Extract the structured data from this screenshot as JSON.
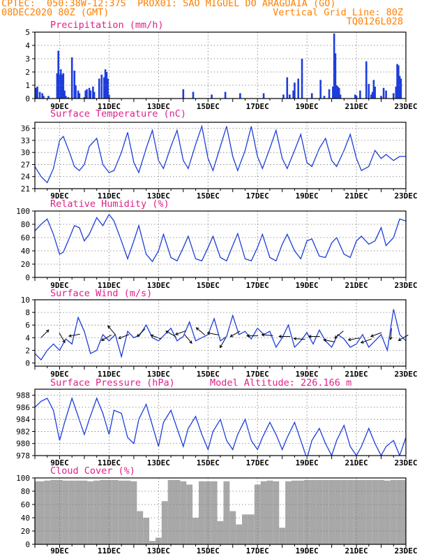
{
  "header": {
    "line1": "CPTEC:  050:38W-12:37S  PROX01: SAO MIGUEL DO ARAGUAIA (GO)",
    "line2_left": "08DEC2020 80Z (GMT)",
    "line2_right": "Vertical Grid Line: 80Z",
    "line3_right": "TQ0126L028",
    "model_altitude": "Model Altitude: 226.166 m"
  },
  "colors": {
    "header": "#ff7f00",
    "title": "#e0208a",
    "line": "#1c3ddc",
    "bar": "#1c3ddc",
    "cloud": "#a8a8a8"
  },
  "x_ticks": [
    "9DEC",
    "11DEC",
    "13DEC",
    "15DEC",
    "17DEC",
    "19DEC",
    "21DEC",
    "23DEC"
  ],
  "x_tick_pos": [
    1,
    3,
    5,
    7,
    9,
    11,
    13,
    15
  ],
  "x_range": [
    0.0,
    15.0
  ],
  "chart_data": [
    {
      "type": "bar",
      "title": "Precipitation (mm/h)",
      "ylim": [
        0,
        5
      ],
      "yticks": [
        0,
        1,
        2,
        3,
        4,
        5
      ],
      "grid": true,
      "x": [
        0.05,
        0.1,
        0.2,
        0.3,
        0.35,
        0.55,
        0.9,
        0.95,
        1.0,
        1.05,
        1.1,
        1.15,
        1.2,
        1.25,
        1.35,
        1.5,
        1.6,
        1.65,
        1.75,
        1.8,
        2.0,
        2.05,
        2.1,
        2.2,
        2.25,
        2.35,
        2.4,
        2.6,
        2.7,
        2.8,
        2.85,
        2.9,
        2.95,
        3.0,
        6.0,
        6.4,
        7.15,
        7.7,
        8.3,
        9.25,
        10.05,
        10.2,
        10.3,
        10.45,
        10.5,
        10.65,
        10.8,
        11.2,
        11.55,
        11.7,
        11.9,
        12.05,
        12.1,
        12.15,
        12.2,
        12.25,
        12.3,
        12.35,
        12.95,
        13.0,
        13.15,
        13.4,
        13.5,
        13.6,
        13.65,
        13.7,
        13.75,
        14.0,
        14.1,
        14.2,
        14.5,
        14.6,
        14.65,
        14.7,
        14.75,
        14.8
      ],
      "values": [
        0.8,
        0.9,
        0.5,
        0.4,
        0.2,
        0.2,
        1.9,
        3.6,
        1.8,
        2.2,
        1.8,
        1.9,
        0.6,
        0.2,
        0.1,
        3.1,
        2.1,
        1.0,
        0.6,
        0.4,
        0.1,
        0.6,
        0.7,
        0.8,
        0.6,
        0.9,
        0.5,
        1.5,
        1.8,
        1.6,
        2.2,
        2.0,
        1.5,
        0.3,
        0.7,
        0.5,
        0.3,
        0.5,
        0.4,
        0.4,
        0.3,
        1.6,
        0.3,
        0.6,
        1.2,
        1.5,
        3.0,
        0.4,
        1.4,
        0.2,
        0.7,
        0.9,
        4.9,
        3.4,
        1.0,
        0.9,
        0.8,
        0.3,
        0.3,
        0.2,
        0.6,
        2.8,
        1.1,
        0.3,
        0.5,
        1.4,
        0.9,
        0.2,
        0.8,
        0.6,
        0.4,
        0.9,
        2.6,
        2.5,
        1.7,
        1.5
      ]
    },
    {
      "type": "line",
      "title": "Surface Temperature (nC)",
      "ylim": [
        21,
        37.5
      ],
      "yticks": [
        21,
        24,
        27,
        30,
        33,
        36
      ],
      "grid": true,
      "x": [
        0.0,
        0.25,
        0.5,
        0.75,
        1.0,
        1.15,
        1.4,
        1.6,
        1.8,
        2.0,
        2.2,
        2.5,
        2.75,
        3.0,
        3.2,
        3.5,
        3.75,
        4.0,
        4.2,
        4.5,
        4.75,
        5.0,
        5.2,
        5.5,
        5.75,
        6.0,
        6.2,
        6.5,
        6.75,
        7.0,
        7.2,
        7.5,
        7.75,
        8.0,
        8.2,
        8.5,
        8.75,
        9.0,
        9.2,
        9.5,
        9.75,
        10.0,
        10.2,
        10.5,
        10.75,
        11.0,
        11.2,
        11.5,
        11.75,
        12.0,
        12.2,
        12.5,
        12.75,
        13.0,
        13.2,
        13.5,
        13.75,
        14.0,
        14.2,
        14.5,
        14.75,
        15.0
      ],
      "series": [
        {
          "values": [
            26.5,
            24.0,
            22.5,
            26.0,
            33.0,
            34.0,
            30.0,
            26.5,
            25.5,
            27.0,
            31.5,
            33.5,
            27.0,
            25.0,
            25.5,
            30.0,
            35.0,
            27.5,
            25.0,
            31.0,
            35.5,
            28.0,
            26.0,
            31.5,
            35.5,
            28.0,
            26.0,
            32.0,
            36.5,
            28.5,
            25.5,
            31.5,
            36.5,
            29.0,
            25.5,
            30.5,
            36.5,
            29.0,
            26.0,
            31.0,
            35.5,
            28.5,
            26.0,
            30.5,
            34.5,
            27.5,
            26.5,
            31.0,
            33.5,
            28.0,
            26.5,
            30.5,
            34.5,
            28.5,
            25.5,
            26.5,
            30.5,
            28.5,
            29.5,
            28.0,
            29.0,
            29.0
          ]
        }
      ]
    },
    {
      "type": "line",
      "title": "Relative Humidity (%)",
      "ylim": [
        0,
        100
      ],
      "yticks": [
        0,
        20,
        40,
        60,
        80,
        100
      ],
      "grid": true,
      "x": [
        0.0,
        0.25,
        0.5,
        0.75,
        1.0,
        1.15,
        1.4,
        1.6,
        1.8,
        2.0,
        2.2,
        2.5,
        2.75,
        3.0,
        3.2,
        3.5,
        3.75,
        4.0,
        4.2,
        4.5,
        4.75,
        5.0,
        5.2,
        5.5,
        5.75,
        6.0,
        6.2,
        6.5,
        6.75,
        7.0,
        7.2,
        7.5,
        7.75,
        8.0,
        8.2,
        8.5,
        8.75,
        9.0,
        9.2,
        9.5,
        9.75,
        10.0,
        10.2,
        10.5,
        10.75,
        11.0,
        11.2,
        11.5,
        11.75,
        12.0,
        12.2,
        12.5,
        12.75,
        13.0,
        13.2,
        13.5,
        13.75,
        14.0,
        14.2,
        14.5,
        14.75,
        15.0
      ],
      "series": [
        {
          "values": [
            70,
            80,
            88,
            65,
            35,
            38,
            60,
            78,
            75,
            55,
            65,
            90,
            78,
            95,
            85,
            55,
            28,
            55,
            78,
            35,
            24,
            40,
            65,
            30,
            25,
            45,
            62,
            28,
            25,
            45,
            62,
            30,
            25,
            48,
            66,
            28,
            25,
            45,
            65,
            30,
            25,
            50,
            65,
            40,
            28,
            55,
            58,
            32,
            30,
            52,
            60,
            35,
            30,
            55,
            62,
            50,
            55,
            75,
            48,
            60,
            88,
            85
          ]
        }
      ]
    },
    {
      "type": "line",
      "title": "Surface Wind (m/s)",
      "ylim": [
        -0.5,
        10
      ],
      "yticks": [
        0,
        2,
        4,
        6,
        8,
        10
      ],
      "grid": true,
      "x": [
        0.0,
        0.25,
        0.5,
        0.75,
        1.0,
        1.25,
        1.5,
        1.75,
        2.0,
        2.25,
        2.5,
        2.75,
        3.0,
        3.25,
        3.5,
        3.75,
        4.0,
        4.25,
        4.5,
        4.75,
        5.0,
        5.25,
        5.5,
        5.75,
        6.0,
        6.25,
        6.5,
        6.75,
        7.0,
        7.25,
        7.5,
        7.75,
        8.0,
        8.25,
        8.5,
        8.75,
        9.0,
        9.25,
        9.5,
        9.75,
        10.0,
        10.25,
        10.5,
        10.75,
        11.0,
        11.25,
        11.5,
        11.75,
        12.0,
        12.25,
        12.5,
        12.75,
        13.0,
        13.25,
        13.5,
        13.75,
        14.0,
        14.25,
        14.5,
        14.75,
        15.0
      ],
      "series": [
        {
          "values": [
            1.5,
            0.5,
            2.0,
            3.0,
            2.0,
            3.8,
            3.0,
            7.2,
            5.0,
            1.5,
            2.0,
            4.5,
            3.5,
            4.5,
            1.0,
            5.0,
            4.0,
            4.5,
            6.0,
            4.0,
            3.5,
            4.5,
            5.5,
            3.5,
            4.2,
            6.5,
            3.5,
            4.0,
            4.5,
            7.0,
            3.5,
            4.2,
            7.5,
            4.5,
            5.0,
            3.8,
            5.5,
            4.5,
            5.0,
            2.5,
            4.0,
            6.0,
            2.5,
            3.5,
            4.8,
            3.0,
            5.2,
            3.5,
            2.5,
            4.5,
            3.8,
            2.5,
            3.0,
            4.5,
            2.5,
            3.5,
            4.5,
            2.0,
            8.5,
            4.5,
            3.5
          ]
        }
      ],
      "arrows": [
        {
          "x": 0.4,
          "y": 4.6,
          "dir": 45
        },
        {
          "x": 1.1,
          "y": 4.0,
          "dir": 300
        },
        {
          "x": 1.6,
          "y": 4.4,
          "dir": 190
        },
        {
          "x": 2.9,
          "y": 4.0,
          "dir": 210
        },
        {
          "x": 3.1,
          "y": 5.2,
          "dir": 130
        },
        {
          "x": 3.6,
          "y": 4.2,
          "dir": 200
        },
        {
          "x": 4.3,
          "y": 4.8,
          "dir": 225
        },
        {
          "x": 4.9,
          "y": 4.1,
          "dir": 160
        },
        {
          "x": 5.5,
          "y": 4.6,
          "dir": 150
        },
        {
          "x": 5.9,
          "y": 4.8,
          "dir": 200
        },
        {
          "x": 6.2,
          "y": 3.8,
          "dir": 310
        },
        {
          "x": 6.7,
          "y": 5.0,
          "dir": 140
        },
        {
          "x": 7.2,
          "y": 4.6,
          "dir": 170
        },
        {
          "x": 7.6,
          "y": 3.2,
          "dir": 240
        },
        {
          "x": 8.1,
          "y": 4.6,
          "dir": 210
        },
        {
          "x": 8.8,
          "y": 4.3,
          "dir": 180
        },
        {
          "x": 9.4,
          "y": 4.4,
          "dir": 175
        },
        {
          "x": 10.1,
          "y": 4.2,
          "dir": 180
        },
        {
          "x": 10.7,
          "y": 3.8,
          "dir": 175
        },
        {
          "x": 11.3,
          "y": 4.2,
          "dir": 180
        },
        {
          "x": 11.9,
          "y": 3.5,
          "dir": 170
        },
        {
          "x": 12.3,
          "y": 4.5,
          "dir": 220
        },
        {
          "x": 12.9,
          "y": 3.8,
          "dir": 190
        },
        {
          "x": 13.4,
          "y": 3.5,
          "dir": 200
        },
        {
          "x": 13.8,
          "y": 4.5,
          "dir": 200
        },
        {
          "x": 14.4,
          "y": 4.6,
          "dir": 265
        },
        {
          "x": 14.9,
          "y": 4.0,
          "dir": 210
        }
      ]
    },
    {
      "type": "line",
      "title": "Surface Pressure (hPa)",
      "ylim": [
        978,
        989
      ],
      "yticks": [
        978,
        980,
        982,
        984,
        986,
        988
      ],
      "grid": true,
      "x": [
        0.0,
        0.25,
        0.5,
        0.75,
        1.0,
        1.2,
        1.5,
        1.75,
        2.0,
        2.2,
        2.5,
        2.75,
        3.0,
        3.2,
        3.5,
        3.75,
        4.0,
        4.2,
        4.5,
        4.75,
        5.0,
        5.2,
        5.5,
        5.75,
        6.0,
        6.2,
        6.5,
        6.75,
        7.0,
        7.2,
        7.5,
        7.75,
        8.0,
        8.2,
        8.5,
        8.75,
        9.0,
        9.2,
        9.5,
        9.75,
        10.0,
        10.2,
        10.5,
        10.75,
        11.0,
        11.2,
        11.5,
        11.75,
        12.0,
        12.2,
        12.5,
        12.75,
        13.0,
        13.2,
        13.5,
        13.75,
        14.0,
        14.2,
        14.5,
        14.75,
        15.0
      ],
      "series": [
        {
          "values": [
            986.0,
            987.0,
            987.5,
            985.5,
            980.5,
            983.5,
            987.5,
            984.5,
            981.5,
            984.0,
            987.5,
            985.0,
            981.5,
            985.5,
            985.0,
            981.0,
            980.0,
            984.0,
            986.5,
            983.0,
            979.5,
            983.5,
            985.5,
            982.5,
            979.5,
            982.5,
            984.5,
            981.5,
            979.0,
            982.0,
            984.0,
            980.5,
            979.0,
            981.5,
            984.0,
            980.5,
            979.0,
            981.0,
            983.5,
            981.5,
            979.0,
            981.0,
            983.5,
            980.5,
            977.5,
            980.5,
            982.5,
            980.0,
            978.0,
            980.5,
            983.0,
            979.5,
            978.0,
            979.5,
            982.5,
            980.0,
            978.0,
            979.5,
            980.5,
            978.0,
            981.0
          ]
        }
      ]
    },
    {
      "type": "bar",
      "title": "Cloud Cover (%)",
      "ylim": [
        0,
        100
      ],
      "yticks": [
        0,
        20,
        40,
        60,
        80,
        100
      ],
      "grid": true,
      "x": [
        0.0,
        0.25,
        0.5,
        0.75,
        1.0,
        1.25,
        1.5,
        1.75,
        2.0,
        2.25,
        2.5,
        2.75,
        3.0,
        3.25,
        3.5,
        3.75,
        4.0,
        4.25,
        4.5,
        4.75,
        5.0,
        5.25,
        5.5,
        5.75,
        6.0,
        6.25,
        6.5,
        6.75,
        7.0,
        7.25,
        7.5,
        7.75,
        8.0,
        8.25,
        8.5,
        8.75,
        9.0,
        9.25,
        9.5,
        9.75,
        10.0,
        10.25,
        10.5,
        10.75,
        11.0,
        11.25,
        11.5,
        11.75,
        12.0,
        12.25,
        12.5,
        12.75,
        13.0,
        13.25,
        13.5,
        13.75,
        14.0,
        14.25,
        14.5,
        14.75,
        15.0
      ],
      "values": [
        95,
        95,
        96,
        97,
        97,
        96,
        96,
        96,
        96,
        95,
        96,
        97,
        97,
        97,
        96,
        96,
        95,
        50,
        40,
        5,
        10,
        65,
        97,
        97,
        95,
        90,
        40,
        95,
        95,
        95,
        35,
        95,
        50,
        30,
        45,
        45,
        90,
        95,
        96,
        95,
        25,
        95,
        96,
        96,
        97,
        97,
        97,
        97,
        97,
        97,
        97,
        97,
        97,
        97,
        97,
        97,
        97,
        96,
        97,
        97,
        97
      ]
    }
  ]
}
